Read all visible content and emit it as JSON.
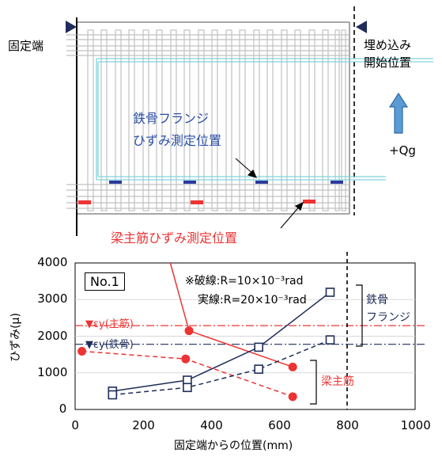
{
  "diagram": {
    "fixed_end": "固定端",
    "embed_line1": "埋め込み",
    "embed_line2": "開始位置",
    "flange_line1": "鉄骨フランジ",
    "flange_line2": "ひずみ測定位置",
    "main_bar_label": "梁主筋ひずみ測定位置",
    "force": "+Qg"
  },
  "colors": {
    "red": "#ee3333",
    "navy": "#1f2d5a",
    "blue_marker": "#2b3aa0",
    "arrow_blue": "#5b9bd5",
    "cyan": "#7fd3de"
  },
  "chart_data": {
    "type": "line",
    "xlabel": "固定端からの位置(mm)",
    "ylabel": "ひずみ(μ)",
    "xlim": [
      0,
      1000
    ],
    "ylim": [
      0,
      4000
    ],
    "xticks": [
      "0",
      "200",
      "400",
      "600",
      "800",
      "1000"
    ],
    "yticks": [
      "0",
      "1000",
      "2000",
      "3000",
      "4000"
    ],
    "legend_box": "No.1",
    "note_line1": "※破線:R=10×10⁻³rad",
    "note_line2": "実線:R=20×10⁻³rad",
    "ref_main": "▼εy(主筋)",
    "ref_steel": "▼εy(鉄骨)",
    "bracket_steel_1": "鉄骨",
    "bracket_steel_2": "フランジ",
    "bracket_bar": "梁主筋",
    "ref_main_value": 2290,
    "ref_steel_value": 1780,
    "embed_x": 800,
    "series": [
      {
        "style": "red-solid",
        "x": [
          280,
          335,
          640
        ],
        "y": [
          4000,
          2150,
          1160
        ]
      },
      {
        "style": "red-dashed",
        "x": [
          20,
          325,
          640
        ],
        "y": [
          1590,
          1380,
          350
        ]
      },
      {
        "style": "navy-solid",
        "x": [
          110,
          330,
          540,
          750
        ],
        "y": [
          500,
          800,
          1700,
          3200
        ]
      },
      {
        "style": "navy-dashed",
        "x": [
          110,
          330,
          540,
          750
        ],
        "y": [
          400,
          600,
          1100,
          1900
        ]
      }
    ]
  }
}
